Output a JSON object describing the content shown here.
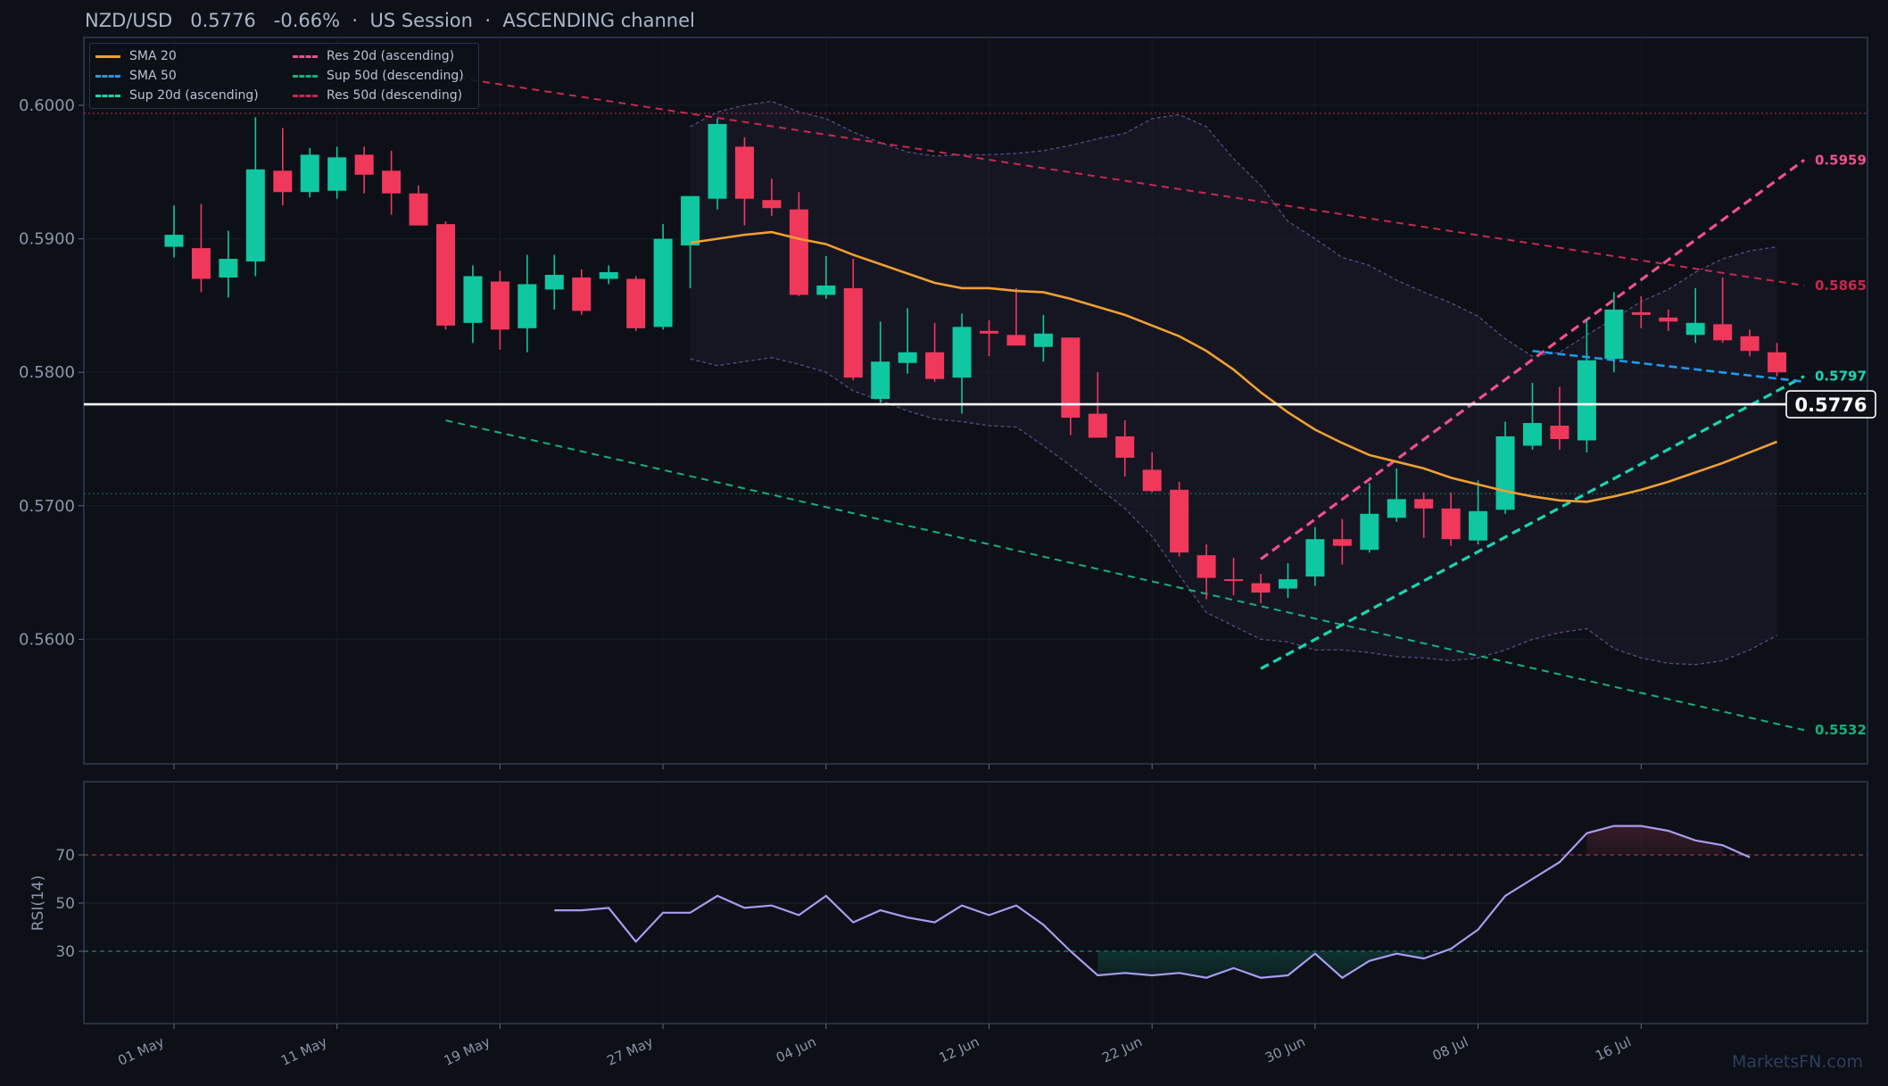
{
  "header": {
    "pair": "NZD/USD",
    "price": "0.5776",
    "change": "-0.66%",
    "session": "US Session",
    "pattern": "ASCENDING channel",
    "separator": "·"
  },
  "watermark": "MarketsFN.com",
  "colors": {
    "background": "#0d1017",
    "up": "#0fc7a0",
    "down": "#f0385b",
    "sma20": "#f0a030",
    "sma50": "#1e9bf0",
    "sup20": "#18d6b0",
    "res20": "#f0508c",
    "sup50": "#16b07c",
    "res50": "#c8284e",
    "rsi": "#a89cf0",
    "current_line": "#ffffff"
  },
  "legend": [
    {
      "label": "SMA 20",
      "color": "#f0a030",
      "style": "solid"
    },
    {
      "label": "SMA 50",
      "color": "#1e9bf0",
      "style": "dashed"
    },
    {
      "label": "Sup 20d (ascending)",
      "color": "#18d6b0",
      "style": "dashed"
    },
    {
      "label": "Res 20d (ascending)",
      "color": "#f0508c",
      "style": "dashed"
    },
    {
      "label": "Sup 50d (descending)",
      "color": "#16b07c",
      "style": "dashed"
    },
    {
      "label": "Res 50d (descending)",
      "color": "#c8284e",
      "style": "dashed"
    }
  ],
  "chart_data": {
    "type": "candlestick",
    "title": "NZD/USD 0.5776 -0.66% · US Session · ASCENDING channel",
    "ylim": [
      0.5508,
      0.6046
    ],
    "y_ticks": [
      "0.6000",
      "0.5900",
      "0.5800",
      "0.5700",
      "0.5600"
    ],
    "y_tick_values": [
      0.6,
      0.59,
      0.58,
      0.57,
      0.56
    ],
    "x_ticks": [
      "01 May",
      "11 May",
      "19 May",
      "27 May",
      "04 Jun",
      "12 Jun",
      "22 Jun",
      "30 Jun",
      "08 Jul",
      "16 Jul"
    ],
    "x_tick_index": [
      0,
      6,
      12,
      18,
      24,
      30,
      36,
      42,
      48,
      54
    ],
    "index_range": [
      -3.3,
      62.5
    ],
    "current_price": 0.5776,
    "current_price_label": "0.5776",
    "reference_levels": {
      "upper": 0.5994,
      "lower": 0.5709
    },
    "candles": [
      {
        "o": 0.5894,
        "h": 0.5925,
        "l": 0.5886,
        "c": 0.5903
      },
      {
        "o": 0.5893,
        "h": 0.5926,
        "l": 0.586,
        "c": 0.587
      },
      {
        "o": 0.5871,
        "h": 0.5906,
        "l": 0.5856,
        "c": 0.5885
      },
      {
        "o": 0.5883,
        "h": 0.5991,
        "l": 0.5872,
        "c": 0.5952
      },
      {
        "o": 0.5951,
        "h": 0.5983,
        "l": 0.5925,
        "c": 0.5935
      },
      {
        "o": 0.5935,
        "h": 0.5968,
        "l": 0.5931,
        "c": 0.5963
      },
      {
        "o": 0.5936,
        "h": 0.5969,
        "l": 0.593,
        "c": 0.5961
      },
      {
        "o": 0.5963,
        "h": 0.5969,
        "l": 0.5934,
        "c": 0.5948
      },
      {
        "o": 0.5951,
        "h": 0.5966,
        "l": 0.5918,
        "c": 0.5934
      },
      {
        "o": 0.5934,
        "h": 0.594,
        "l": 0.591,
        "c": 0.591
      },
      {
        "o": 0.5911,
        "h": 0.5913,
        "l": 0.5832,
        "c": 0.5835
      },
      {
        "o": 0.5837,
        "h": 0.588,
        "l": 0.5822,
        "c": 0.5872
      },
      {
        "o": 0.5868,
        "h": 0.5876,
        "l": 0.5817,
        "c": 0.5832
      },
      {
        "o": 0.5833,
        "h": 0.5888,
        "l": 0.5815,
        "c": 0.5866
      },
      {
        "o": 0.5862,
        "h": 0.5888,
        "l": 0.5847,
        "c": 0.5873
      },
      {
        "o": 0.5871,
        "h": 0.5877,
        "l": 0.5843,
        "c": 0.5846
      },
      {
        "o": 0.587,
        "h": 0.588,
        "l": 0.5866,
        "c": 0.5875
      },
      {
        "o": 0.587,
        "h": 0.5872,
        "l": 0.5831,
        "c": 0.5833
      },
      {
        "o": 0.5834,
        "h": 0.5911,
        "l": 0.5832,
        "c": 0.59
      },
      {
        "o": 0.5895,
        "h": 0.5932,
        "l": 0.5863,
        "c": 0.5932
      },
      {
        "o": 0.593,
        "h": 0.599,
        "l": 0.5922,
        "c": 0.5986
      },
      {
        "o": 0.5969,
        "h": 0.5976,
        "l": 0.591,
        "c": 0.593
      },
      {
        "o": 0.5929,
        "h": 0.5945,
        "l": 0.5917,
        "c": 0.5923
      },
      {
        "o": 0.5922,
        "h": 0.5935,
        "l": 0.5857,
        "c": 0.5858
      },
      {
        "o": 0.5858,
        "h": 0.5887,
        "l": 0.5855,
        "c": 0.5865
      },
      {
        "o": 0.5863,
        "h": 0.5885,
        "l": 0.5794,
        "c": 0.5796
      },
      {
        "o": 0.578,
        "h": 0.5838,
        "l": 0.5777,
        "c": 0.5808
      },
      {
        "o": 0.5807,
        "h": 0.5848,
        "l": 0.5799,
        "c": 0.5815
      },
      {
        "o": 0.5815,
        "h": 0.5837,
        "l": 0.5793,
        "c": 0.5795
      },
      {
        "o": 0.5796,
        "h": 0.5844,
        "l": 0.5769,
        "c": 0.5834
      },
      {
        "o": 0.5831,
        "h": 0.5839,
        "l": 0.5812,
        "c": 0.5829
      },
      {
        "o": 0.5828,
        "h": 0.5863,
        "l": 0.582,
        "c": 0.582
      },
      {
        "o": 0.5819,
        "h": 0.5843,
        "l": 0.5808,
        "c": 0.5829
      },
      {
        "o": 0.5826,
        "h": 0.5826,
        "l": 0.5753,
        "c": 0.5766
      },
      {
        "o": 0.5769,
        "h": 0.58,
        "l": 0.5752,
        "c": 0.5751
      },
      {
        "o": 0.5752,
        "h": 0.5764,
        "l": 0.5722,
        "c": 0.5736
      },
      {
        "o": 0.5727,
        "h": 0.574,
        "l": 0.571,
        "c": 0.5711
      },
      {
        "o": 0.5712,
        "h": 0.5718,
        "l": 0.5662,
        "c": 0.5665
      },
      {
        "o": 0.5663,
        "h": 0.5671,
        "l": 0.563,
        "c": 0.5646
      },
      {
        "o": 0.5645,
        "h": 0.5661,
        "l": 0.5633,
        "c": 0.5644
      },
      {
        "o": 0.5642,
        "h": 0.5649,
        "l": 0.5627,
        "c": 0.5635
      },
      {
        "o": 0.5638,
        "h": 0.5657,
        "l": 0.5631,
        "c": 0.5645
      },
      {
        "o": 0.5647,
        "h": 0.5684,
        "l": 0.564,
        "c": 0.5675
      },
      {
        "o": 0.5675,
        "h": 0.569,
        "l": 0.5656,
        "c": 0.567
      },
      {
        "o": 0.5667,
        "h": 0.5717,
        "l": 0.5665,
        "c": 0.5694
      },
      {
        "o": 0.5691,
        "h": 0.5728,
        "l": 0.5688,
        "c": 0.5705
      },
      {
        "o": 0.5705,
        "h": 0.571,
        "l": 0.5676,
        "c": 0.5698
      },
      {
        "o": 0.5698,
        "h": 0.571,
        "l": 0.567,
        "c": 0.5675
      },
      {
        "o": 0.5674,
        "h": 0.5719,
        "l": 0.5671,
        "c": 0.5696
      },
      {
        "o": 0.5697,
        "h": 0.5763,
        "l": 0.5694,
        "c": 0.5752
      },
      {
        "o": 0.5745,
        "h": 0.5792,
        "l": 0.5742,
        "c": 0.5762
      },
      {
        "o": 0.576,
        "h": 0.5789,
        "l": 0.5742,
        "c": 0.575
      },
      {
        "o": 0.5749,
        "h": 0.584,
        "l": 0.574,
        "c": 0.5809
      },
      {
        "o": 0.581,
        "h": 0.586,
        "l": 0.58,
        "c": 0.5847
      },
      {
        "o": 0.5845,
        "h": 0.5857,
        "l": 0.5833,
        "c": 0.5843
      },
      {
        "o": 0.5841,
        "h": 0.5847,
        "l": 0.5831,
        "c": 0.5838
      },
      {
        "o": 0.5828,
        "h": 0.5863,
        "l": 0.5822,
        "c": 0.5837
      },
      {
        "o": 0.5836,
        "h": 0.5871,
        "l": 0.5822,
        "c": 0.5824
      },
      {
        "o": 0.5827,
        "h": 0.5832,
        "l": 0.5812,
        "c": 0.5816
      },
      {
        "o": 0.5815,
        "h": 0.5822,
        "l": 0.5797,
        "c": 0.58
      }
    ],
    "sma20": {
      "start_index": 19,
      "values": [
        0.5897,
        0.59,
        0.5903,
        0.5905,
        0.59,
        0.5896,
        0.5888,
        0.5881,
        0.5874,
        0.5867,
        0.5863,
        0.5863,
        0.5861,
        0.586,
        0.5855,
        0.5849,
        0.5843,
        0.5835,
        0.5827,
        0.5816,
        0.5802,
        0.5785,
        0.577,
        0.5757,
        0.5747,
        0.5738,
        0.5733,
        0.5728,
        0.5721,
        0.5716,
        0.5711,
        0.5707,
        0.5704,
        0.5703,
        0.5707,
        0.5712,
        0.5718,
        0.5725,
        0.5732,
        0.574,
        0.5748
      ]
    },
    "sma50": {
      "start_index": 50,
      "end_index": 60,
      "start_value": 0.5816,
      "end_value": 0.5793
    },
    "bollinger": {
      "start_index": 19,
      "upper": [
        0.5984,
        0.5995,
        0.6,
        0.6003,
        0.5995,
        0.599,
        0.598,
        0.5972,
        0.5965,
        0.5962,
        0.5963,
        0.5963,
        0.5964,
        0.5966,
        0.597,
        0.5975,
        0.5979,
        0.599,
        0.5993,
        0.5984,
        0.596,
        0.594,
        0.5913,
        0.59,
        0.5886,
        0.588,
        0.5869,
        0.586,
        0.5852,
        0.5842,
        0.5825,
        0.5812,
        0.5815,
        0.5828,
        0.584,
        0.5853,
        0.5862,
        0.5875,
        0.5885,
        0.5891,
        0.5894
      ],
      "lower": [
        0.581,
        0.5805,
        0.5808,
        0.5811,
        0.5806,
        0.58,
        0.5786,
        0.5779,
        0.5771,
        0.5765,
        0.5763,
        0.576,
        0.5759,
        0.5745,
        0.573,
        0.5714,
        0.5698,
        0.5677,
        0.5648,
        0.562,
        0.561,
        0.56,
        0.5598,
        0.5592,
        0.5592,
        0.559,
        0.5587,
        0.5586,
        0.5584,
        0.5586,
        0.5592,
        0.56,
        0.5605,
        0.5608,
        0.5593,
        0.5586,
        0.5582,
        0.5581,
        0.5584,
        0.5592,
        0.5603
      ]
    },
    "lines": [
      {
        "name": "Res 50d (descending)",
        "x0": 10,
        "y0": 0.6022,
        "x1": 60,
        "y1": 0.5865,
        "label": "0.5865"
      },
      {
        "name": "Sup 50d (descending)",
        "x0": 10,
        "y0": 0.5764,
        "x1": 60,
        "y1": 0.5532,
        "label": "0.5532"
      },
      {
        "name": "Res 20d (ascending)",
        "x0": 40,
        "y0": 0.566,
        "x1": 60,
        "y1": 0.5959,
        "label": "0.5959"
      },
      {
        "name": "Sup 20d (ascending)",
        "x0": 40,
        "y0": 0.5578,
        "x1": 60,
        "y1": 0.5797,
        "label": "0.5797"
      }
    ],
    "rsi": {
      "ylabel": "RSI(14)",
      "ylim": [
        0,
        100
      ],
      "y_ticks": [
        "70",
        "50",
        "30"
      ],
      "y_tick_values": [
        70,
        50,
        30
      ],
      "overbought": 70,
      "oversold": 30,
      "start_index": 14,
      "values": [
        47,
        47,
        48,
        34,
        46,
        46,
        53,
        48,
        49,
        45,
        53,
        42,
        47,
        44,
        42,
        49,
        45,
        49,
        41,
        30,
        20,
        21,
        20,
        21,
        19,
        23,
        19,
        20,
        29,
        19,
        26,
        29,
        27,
        31,
        39,
        53,
        60,
        67,
        79,
        82,
        82,
        80,
        76,
        74,
        69
      ]
    }
  }
}
